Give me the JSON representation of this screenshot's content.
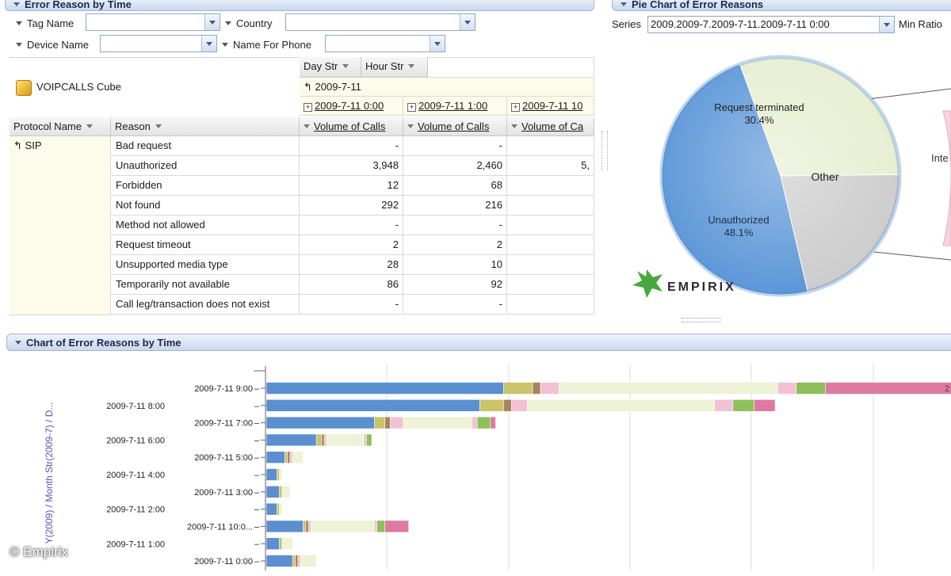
{
  "left_panel": {
    "title": "Error Reason by Time",
    "filters": [
      {
        "label": "Tag Name",
        "value": ""
      },
      {
        "label": "Country",
        "value": ""
      },
      {
        "label": "Device Name",
        "value": ""
      },
      {
        "label": "Name For Phone",
        "value": ""
      }
    ],
    "cube_name": "VOIPCALLS Cube",
    "col_dim_headers": [
      "Day Str",
      "Hour Str"
    ],
    "day_member": "2009-7-11",
    "time_members": [
      "2009-7-11 0:00",
      "2009-7-11 1:00",
      "2009-7-11 10"
    ],
    "row_headers": [
      "Protocol Name",
      "Reason"
    ],
    "measure": "Volume of Calls",
    "measure_cut": "Volume of Ca",
    "protocol": "SIP",
    "rows": [
      {
        "reason": "Bad request",
        "v": [
          "-",
          "-",
          ""
        ]
      },
      {
        "reason": "Unauthorized",
        "v": [
          "3,948",
          "2,460",
          "5,"
        ]
      },
      {
        "reason": "Forbidden",
        "v": [
          "12",
          "68",
          ""
        ]
      },
      {
        "reason": "Not found",
        "v": [
          "292",
          "216",
          ""
        ]
      },
      {
        "reason": "Method not allowed",
        "v": [
          "-",
          "-",
          ""
        ]
      },
      {
        "reason": "Request timeout",
        "v": [
          "2",
          "2",
          ""
        ]
      },
      {
        "reason": "Unsupported media type",
        "v": [
          "28",
          "10",
          ""
        ]
      },
      {
        "reason": "Temporarily not available",
        "v": [
          "86",
          "92",
          ""
        ]
      },
      {
        "reason": "Call leg/transaction does not exist",
        "v": [
          "-",
          "-",
          ""
        ]
      }
    ]
  },
  "pie_panel": {
    "title": "Pie Chart of Error Reasons",
    "series_label": "Series",
    "series_value": "2009.2009-7.2009-7-11.2009-7-11 0:00",
    "min_ratio_label": "Min Ratio",
    "logo_text": "EMPIRIX",
    "chart_data": {
      "type": "pie",
      "slices": [
        {
          "label": "Request terminated",
          "value": 30.4,
          "value_label": "30.4%",
          "color": "#e6eed0"
        },
        {
          "label": "Other",
          "value": 21.5,
          "value_label": "",
          "color": "#cccccc"
        },
        {
          "label": "Unauthorized",
          "value": 48.1,
          "value_label": "48.1%",
          "color": "#5d97d8"
        }
      ],
      "right_slice_partial_label": "Inte",
      "right_slice_color": "#f6d2de"
    }
  },
  "bar_panel": {
    "title": "Chart of Error Reasons by Time",
    "y_axis_title": "Y(2009) / Month Str(2009-7) / D...",
    "right_partial_label": "2",
    "colors": {
      "blue": "#5b8fd0",
      "olive": "#c9c36a",
      "brown": "#a7855c",
      "pink": "#f2c2d2",
      "cream": "#eef2d6",
      "green": "#8fbf5a",
      "magenta": "#de7aa0",
      "grey": "#c8c8c8"
    },
    "chart_data": {
      "type": "bar",
      "orientation": "horizontal",
      "stacked": true,
      "xlim": [
        0,
        1300
      ],
      "grid": true,
      "categories": [
        "2009-7-11 9:00",
        "2009-7-11 8:00",
        "2009-7-11 7:00",
        "2009-7-11 6:00",
        "2009-7-11 5:00",
        "2009-7-11 4:00",
        "2009-7-11 3:00",
        "2009-7-11 2:00",
        "2009-7-11 10:0...",
        "2009-7-11 1:00",
        "2009-7-11 0:00"
      ],
      "label_side": [
        "right",
        "left",
        "right",
        "left",
        "right",
        "left",
        "right",
        "left",
        "right",
        "left",
        "right"
      ],
      "series_colors": [
        "blue",
        "olive",
        "brown",
        "pink",
        "cream",
        "pink",
        "green",
        "magenta"
      ],
      "values": [
        [
          450,
          55,
          15,
          35,
          415,
          35,
          55,
          250
        ],
        [
          405,
          45,
          15,
          30,
          355,
          35,
          40,
          40
        ],
        [
          205,
          20,
          10,
          25,
          130,
          10,
          25,
          10
        ],
        [
          95,
          10,
          5,
          5,
          70,
          5,
          10,
          0
        ],
        [
          35,
          5,
          5,
          5,
          20,
          0,
          0,
          0
        ],
        [
          20,
          5,
          0,
          0,
          5,
          0,
          0,
          0
        ],
        [
          25,
          5,
          0,
          0,
          15,
          0,
          0,
          0
        ],
        [
          20,
          5,
          0,
          0,
          5,
          0,
          0,
          0
        ],
        [
          70,
          5,
          5,
          5,
          120,
          5,
          15,
          45
        ],
        [
          25,
          5,
          0,
          0,
          20,
          0,
          0,
          0
        ],
        [
          50,
          5,
          5,
          5,
          30,
          0,
          0,
          0
        ]
      ]
    }
  },
  "watermark": "© Empirix"
}
